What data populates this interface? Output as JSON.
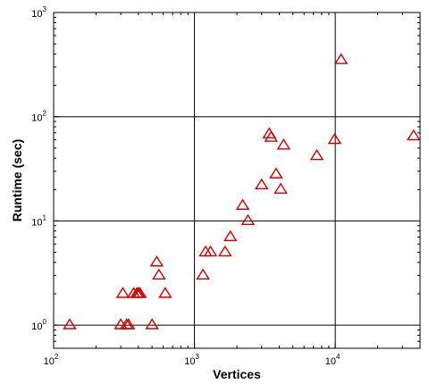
{
  "chart_data": {
    "type": "scatter",
    "title": "",
    "xlabel": "Vertices",
    "ylabel": "Runtime (sec)",
    "xscale": "log",
    "yscale": "log",
    "xlim": [
      100,
      40000
    ],
    "ylim": [
      0.6,
      1000
    ],
    "grid": true,
    "marker": "triangle-open",
    "marker_color": "#cc0000",
    "x_ticks": [
      {
        "base": "10",
        "exp": "2",
        "value": 100
      },
      {
        "base": "10",
        "exp": "3",
        "value": 1000
      },
      {
        "base": "10",
        "exp": "4",
        "value": 10000
      }
    ],
    "y_ticks": [
      {
        "base": "10",
        "exp": "0",
        "value": 1
      },
      {
        "base": "10",
        "exp": "1",
        "value": 10
      },
      {
        "base": "10",
        "exp": "2",
        "value": 100
      },
      {
        "base": "10",
        "exp": "3",
        "value": 1000
      }
    ],
    "points": [
      {
        "x": 130,
        "y": 1.0
      },
      {
        "x": 300,
        "y": 1.0
      },
      {
        "x": 330,
        "y": 1.0
      },
      {
        "x": 340,
        "y": 1.0
      },
      {
        "x": 500,
        "y": 1.0
      },
      {
        "x": 310,
        "y": 2.0
      },
      {
        "x": 370,
        "y": 2.0
      },
      {
        "x": 390,
        "y": 2.0
      },
      {
        "x": 400,
        "y": 2.0
      },
      {
        "x": 410,
        "y": 2.0
      },
      {
        "x": 620,
        "y": 2.0
      },
      {
        "x": 560,
        "y": 3.0
      },
      {
        "x": 540,
        "y": 4.0
      },
      {
        "x": 1150,
        "y": 3.0
      },
      {
        "x": 1200,
        "y": 5.0
      },
      {
        "x": 1300,
        "y": 5.0
      },
      {
        "x": 1650,
        "y": 5.0
      },
      {
        "x": 1800,
        "y": 7.0
      },
      {
        "x": 2200,
        "y": 14.0
      },
      {
        "x": 2400,
        "y": 10.0
      },
      {
        "x": 3000,
        "y": 22.0
      },
      {
        "x": 3800,
        "y": 28.0
      },
      {
        "x": 4100,
        "y": 20.0
      },
      {
        "x": 3400,
        "y": 68.0
      },
      {
        "x": 3500,
        "y": 63.0
      },
      {
        "x": 4300,
        "y": 53.0
      },
      {
        "x": 7400,
        "y": 42.0
      },
      {
        "x": 9900,
        "y": 60.0
      },
      {
        "x": 11000,
        "y": 350.0
      },
      {
        "x": 36000,
        "y": 65.0
      }
    ]
  }
}
